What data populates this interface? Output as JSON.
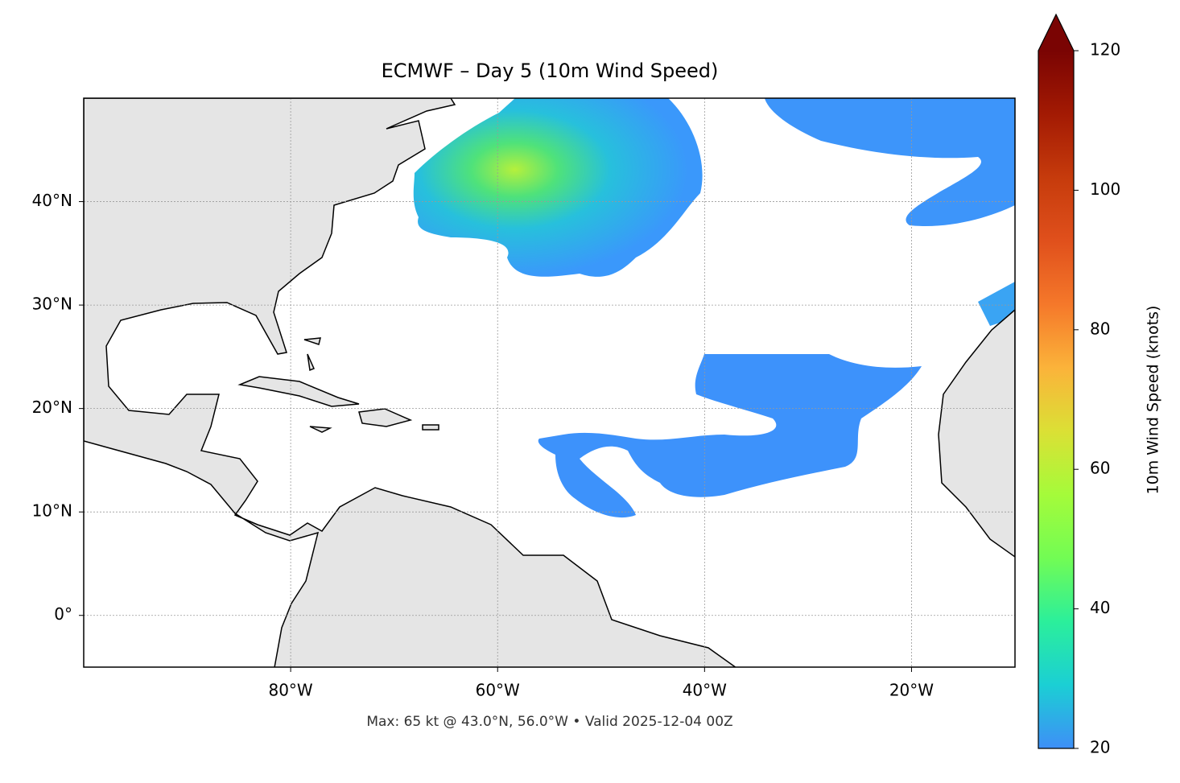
{
  "chart_data": {
    "type": "map",
    "title": "ECMWF – Day 5 (10m Wind Speed)",
    "footnote": "Max: 65 kt @ 43.0°N, 56.0°W • Valid 2025-12-04 00Z",
    "xlim": [
      -100,
      -10
    ],
    "ylim": [
      -5,
      50
    ],
    "xticks": [
      {
        "value": -80,
        "label": "80°W"
      },
      {
        "value": -60,
        "label": "60°W"
      },
      {
        "value": -40,
        "label": "40°W"
      },
      {
        "value": -20,
        "label": "20°W"
      }
    ],
    "yticks": [
      {
        "value": 0,
        "label": "0°"
      },
      {
        "value": 10,
        "label": "10°N"
      },
      {
        "value": 20,
        "label": "20°N"
      },
      {
        "value": 30,
        "label": "30°N"
      },
      {
        "value": 40,
        "label": "40°N"
      }
    ],
    "grid": true,
    "colorbar": {
      "label": "10m Wind Speed (knots)",
      "lim": [
        20,
        120
      ],
      "ticks": [
        20,
        40,
        60,
        80,
        100,
        120
      ],
      "extend": "max",
      "colors": [
        "#3e8ff7",
        "#1bcfd4",
        "#2bef9b",
        "#72fc54",
        "#a5fb3a",
        "#dbe035",
        "#fbb33a",
        "#f5782a",
        "#e0501c",
        "#c63b0c",
        "#a31a03",
        "#7a0403"
      ]
    }
  }
}
